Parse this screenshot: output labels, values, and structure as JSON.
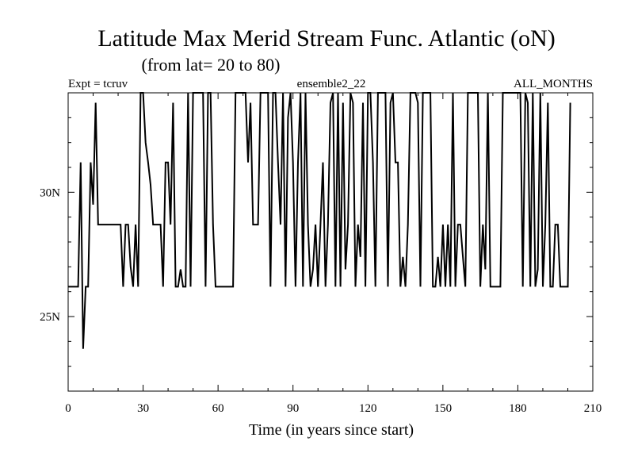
{
  "chart_data": {
    "type": "line",
    "title": "Latitude Max Merid Stream Func. Atlantic (oN)",
    "subtitle": "(from lat= 20 to 80)",
    "header_left": "Expt = tcruv",
    "header_center": "ensemble2_22",
    "header_right": "ALL_MONTHS",
    "xlabel": "Time (in years since start)",
    "ylabel": "",
    "xlim": [
      0,
      210
    ],
    "ylim": [
      22,
      34
    ],
    "x_ticks": [
      0,
      30,
      60,
      90,
      120,
      150,
      180,
      210
    ],
    "x_tick_labels": [
      "0",
      "30",
      "60",
      "90",
      "120",
      "150",
      "180",
      "210"
    ],
    "y_ticks": [
      25,
      30
    ],
    "y_tick_labels": [
      "25N",
      "30N"
    ],
    "grid": false,
    "series": [
      {
        "name": "",
        "color": "#000000",
        "points": [
          [
            0,
            26.2
          ],
          [
            4,
            26.2
          ],
          [
            5,
            31.2
          ],
          [
            6,
            23.7
          ],
          [
            7,
            26.2
          ],
          [
            8,
            26.2
          ],
          [
            9,
            31.2
          ],
          [
            10,
            29.5
          ],
          [
            11,
            33.6
          ],
          [
            12,
            28.7
          ],
          [
            21,
            28.7
          ],
          [
            22,
            26.2
          ],
          [
            23,
            28.7
          ],
          [
            24,
            28.7
          ],
          [
            25,
            27.0
          ],
          [
            26,
            26.2
          ],
          [
            27,
            28.7
          ],
          [
            28,
            26.2
          ],
          [
            29,
            34.0
          ],
          [
            30,
            34.0
          ],
          [
            31,
            32.0
          ],
          [
            32,
            31.2
          ],
          [
            33,
            30.3
          ],
          [
            34,
            28.7
          ],
          [
            37,
            28.7
          ],
          [
            38,
            26.2
          ],
          [
            39,
            31.2
          ],
          [
            40,
            31.2
          ],
          [
            41,
            28.7
          ],
          [
            42,
            33.6
          ],
          [
            43,
            26.2
          ],
          [
            44,
            26.2
          ],
          [
            45,
            26.9
          ],
          [
            46,
            26.2
          ],
          [
            47,
            26.2
          ],
          [
            48,
            34.0
          ],
          [
            49,
            26.2
          ],
          [
            50,
            34.0
          ],
          [
            54,
            34.0
          ],
          [
            55,
            26.2
          ],
          [
            56,
            34.0
          ],
          [
            57,
            34.0
          ],
          [
            58,
            28.7
          ],
          [
            59,
            26.2
          ],
          [
            66,
            26.2
          ],
          [
            67,
            34.0
          ],
          [
            71,
            34.0
          ],
          [
            72,
            31.2
          ],
          [
            73,
            33.6
          ],
          [
            74,
            28.7
          ],
          [
            76,
            28.7
          ],
          [
            77,
            34.0
          ],
          [
            80,
            34.0
          ],
          [
            81,
            26.2
          ],
          [
            82,
            34.0
          ],
          [
            83,
            34.0
          ],
          [
            84,
            31.2
          ],
          [
            85,
            28.7
          ],
          [
            86,
            34.0
          ],
          [
            87,
            26.2
          ],
          [
            88,
            33.0
          ],
          [
            89,
            34.0
          ],
          [
            90,
            31.2
          ],
          [
            91,
            26.2
          ],
          [
            92,
            31.2
          ],
          [
            93,
            34.0
          ],
          [
            94,
            26.2
          ],
          [
            95,
            34.0
          ],
          [
            96,
            28.7
          ],
          [
            97,
            26.2
          ],
          [
            98,
            26.9
          ],
          [
            99,
            28.7
          ],
          [
            100,
            26.2
          ],
          [
            101,
            28.7
          ],
          [
            102,
            31.2
          ],
          [
            103,
            26.2
          ],
          [
            104,
            28.7
          ],
          [
            105,
            33.6
          ],
          [
            106,
            34.0
          ],
          [
            107,
            26.2
          ],
          [
            108,
            34.0
          ],
          [
            109,
            26.2
          ],
          [
            110,
            33.6
          ],
          [
            111,
            26.9
          ],
          [
            112,
            28.7
          ],
          [
            113,
            34.0
          ],
          [
            114,
            33.6
          ],
          [
            115,
            26.2
          ],
          [
            116,
            28.7
          ],
          [
            117,
            27.4
          ],
          [
            118,
            33.6
          ],
          [
            119,
            26.2
          ],
          [
            120,
            34.0
          ],
          [
            121,
            34.0
          ],
          [
            122,
            31.2
          ],
          [
            123,
            26.2
          ],
          [
            124,
            34.0
          ],
          [
            127,
            34.0
          ],
          [
            128,
            26.2
          ],
          [
            129,
            33.6
          ],
          [
            130,
            34.0
          ],
          [
            131,
            31.2
          ],
          [
            132,
            31.2
          ],
          [
            133,
            26.2
          ],
          [
            134,
            27.4
          ],
          [
            135,
            26.2
          ],
          [
            136,
            28.7
          ],
          [
            137,
            34.0
          ],
          [
            139,
            34.0
          ],
          [
            140,
            33.6
          ],
          [
            141,
            26.2
          ],
          [
            142,
            34.0
          ],
          [
            145,
            34.0
          ],
          [
            146,
            26.2
          ],
          [
            147,
            26.2
          ],
          [
            148,
            27.4
          ],
          [
            149,
            26.2
          ],
          [
            150,
            28.7
          ],
          [
            151,
            26.2
          ],
          [
            152,
            28.7
          ],
          [
            153,
            26.2
          ],
          [
            154,
            34.0
          ],
          [
            155,
            26.2
          ],
          [
            156,
            28.7
          ],
          [
            157,
            28.7
          ],
          [
            158,
            27.4
          ],
          [
            159,
            26.2
          ],
          [
            160,
            34.0
          ],
          [
            164,
            34.0
          ],
          [
            165,
            26.2
          ],
          [
            166,
            28.7
          ],
          [
            167,
            26.9
          ],
          [
            168,
            34.0
          ],
          [
            169,
            26.2
          ],
          [
            173,
            26.2
          ],
          [
            174,
            34.0
          ],
          [
            181,
            34.0
          ],
          [
            182,
            26.2
          ],
          [
            183,
            34.0
          ],
          [
            184,
            33.6
          ],
          [
            185,
            26.2
          ],
          [
            186,
            34.0
          ],
          [
            187,
            26.2
          ],
          [
            188,
            26.9
          ],
          [
            189,
            34.0
          ],
          [
            190,
            26.2
          ],
          [
            191,
            28.7
          ],
          [
            192,
            33.6
          ],
          [
            193,
            26.2
          ],
          [
            194,
            26.2
          ],
          [
            195,
            28.7
          ],
          [
            196,
            28.7
          ],
          [
            197,
            26.2
          ],
          [
            200,
            26.2
          ],
          [
            201,
            33.6
          ]
        ]
      }
    ]
  }
}
